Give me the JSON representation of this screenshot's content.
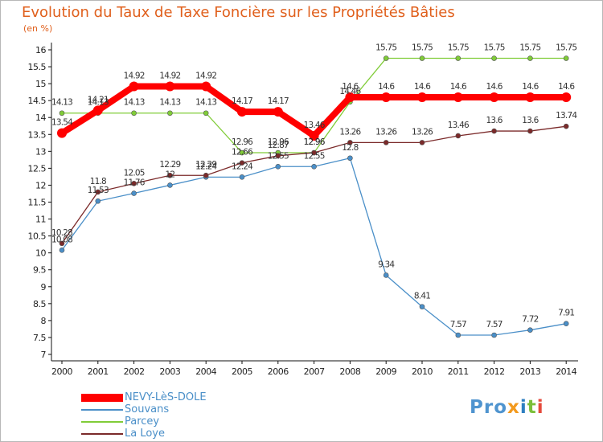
{
  "title": "Evolution du Taux de Taxe Foncière sur les Propriétés Bâties",
  "subtitle": "(en %)",
  "chart_data": {
    "type": "line",
    "title": "Evolution du Taux de Taxe Foncière sur les Propriétés Bâties",
    "ylabel": "(en %)",
    "xlabel": "",
    "ylim": [
      7,
      16
    ],
    "yticks": [
      "7",
      "7.5",
      "8",
      "8.5",
      "9",
      "9.5",
      "10",
      "10.5",
      "11",
      "11.5",
      "12",
      "12.5",
      "13",
      "13.5",
      "14",
      "14.5",
      "15",
      "15.5",
      "16"
    ],
    "categories": [
      "2000",
      "2001",
      "2002",
      "2003",
      "2004",
      "2005",
      "2006",
      "2007",
      "2008",
      "2009",
      "2010",
      "2011",
      "2012",
      "2013",
      "2014"
    ],
    "grid": false,
    "legend": "bottom-left",
    "series": [
      {
        "name": "NEVY-LèS-DOLE",
        "color": "#ff0000",
        "values": [
          13.54,
          14.21,
          14.92,
          14.92,
          14.92,
          14.17,
          14.17,
          13.46,
          14.6,
          14.6,
          14.6,
          14.6,
          14.6,
          14.6,
          14.6
        ],
        "labels": [
          "13.54",
          "14.21",
          "14.92",
          "14.92",
          "14.92",
          "14.17",
          "14.17",
          "13.46",
          "14.6",
          "14.6",
          "14.6",
          "14.6",
          "14.6",
          "14.6",
          "14.6"
        ]
      },
      {
        "name": "Souvans",
        "color": "#4a8fc8",
        "values": [
          10.08,
          11.53,
          11.76,
          12.0,
          12.24,
          12.24,
          12.55,
          12.55,
          12.8,
          9.34,
          8.41,
          7.57,
          7.57,
          7.72,
          7.91
        ],
        "labels": [
          "10.08",
          "11.53",
          "11.76",
          "12",
          "12.24",
          "12.24",
          "12.55",
          "12.55",
          "12.8",
          "9.34",
          "8.41",
          "7.57",
          "7.57",
          "7.72",
          "7.91"
        ]
      },
      {
        "name": "Parcey",
        "color": "#80cc38",
        "values": [
          14.13,
          14.13,
          14.13,
          14.13,
          14.13,
          12.96,
          12.96,
          12.96,
          14.46,
          15.75,
          15.75,
          15.75,
          15.75,
          15.75,
          15.75
        ],
        "labels": [
          "14.13",
          "14.13",
          "14.13",
          "14.13",
          "14.13",
          "12.96",
          "12.96",
          "12.96",
          "14.46",
          "15.75",
          "15.75",
          "15.75",
          "15.75",
          "15.75",
          "15.75"
        ]
      },
      {
        "name": "La Loye",
        "color": "#7b2a2a",
        "values": [
          10.28,
          11.8,
          12.05,
          12.29,
          12.29,
          12.66,
          12.87,
          12.96,
          13.26,
          13.26,
          13.26,
          13.46,
          13.6,
          13.6,
          13.74
        ],
        "labels": [
          "10.28",
          "11.8",
          "12.05",
          "12.29",
          "12.29",
          "12.66",
          "12.87",
          "12.96",
          "13.26",
          "13.26",
          "13.26",
          "13.46",
          "13.6",
          "13.6",
          "13.74"
        ]
      }
    ]
  },
  "legend": [
    {
      "label": "NEVY-LèS-DOLE",
      "color": "#ff0000"
    },
    {
      "label": "Souvans",
      "color": "#4a8fc8"
    },
    {
      "label": "Parcey",
      "color": "#80cc38"
    },
    {
      "label": "La Loye",
      "color": "#7b2a2a"
    }
  ],
  "logo": {
    "p1": "Pro",
    "p2": "x",
    "p3": "i",
    "p4": "t",
    "p5": "i"
  }
}
